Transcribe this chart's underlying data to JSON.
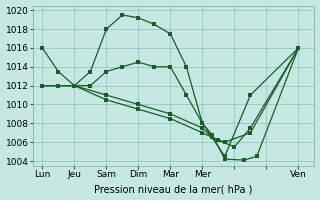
{
  "background_color": "#c5e8e2",
  "grid_color": "#90c0b8",
  "line_color": "#1a5c2a",
  "xlabel": "Pression niveau de la mer( hPa )",
  "ylim": [
    1003.5,
    1020.5
  ],
  "yticks": [
    1004,
    1006,
    1008,
    1010,
    1012,
    1014,
    1016,
    1018,
    1020
  ],
  "xtick_labels": [
    "Lun",
    "Jeu",
    "Sam",
    "Dim",
    "Mar",
    "Mer",
    "",
    "",
    "Ven"
  ],
  "xtick_positions": [
    0,
    1,
    2,
    3,
    4,
    5,
    6,
    7,
    8
  ],
  "xlim": [
    -0.3,
    8.5
  ],
  "s1_x": [
    0,
    0.5,
    1.0,
    1.5,
    2.0,
    2.5,
    3.0,
    3.5,
    4.0,
    4.5,
    5.0,
    5.3,
    5.7,
    6.5,
    8.0
  ],
  "s1_y": [
    1016,
    1013.5,
    1012,
    1013.5,
    1018,
    1019.5,
    1019.2,
    1018.5,
    1017.5,
    1014,
    1008,
    1006.5,
    1004.5,
    1011,
    1016
  ],
  "s2_x": [
    0,
    0.5,
    1.0,
    1.5,
    2.0,
    2.5,
    3.0,
    3.5,
    4.0,
    4.5,
    5.0,
    5.3,
    5.7,
    6.3,
    6.7,
    8.0
  ],
  "s2_y": [
    1012,
    1012,
    1012,
    1012,
    1013.5,
    1014,
    1014.5,
    1014,
    1014,
    1011,
    1008,
    1006.8,
    1004.2,
    1004.1,
    1004.5,
    1016
  ],
  "s3_x": [
    0,
    1.0,
    2.0,
    3.0,
    4.0,
    5.0,
    5.3,
    5.7,
    6.5,
    8.0
  ],
  "s3_y": [
    1012,
    1012,
    1011,
    1010,
    1009,
    1007.5,
    1006.5,
    1006,
    1007,
    1016
  ],
  "s4_x": [
    0,
    1.0,
    2.0,
    3.0,
    4.0,
    5.0,
    5.5,
    6.0,
    6.5,
    8.0
  ],
  "s4_y": [
    1012,
    1012,
    1010.5,
    1009.5,
    1008.5,
    1007,
    1006.2,
    1005.5,
    1007.5,
    1016
  ]
}
